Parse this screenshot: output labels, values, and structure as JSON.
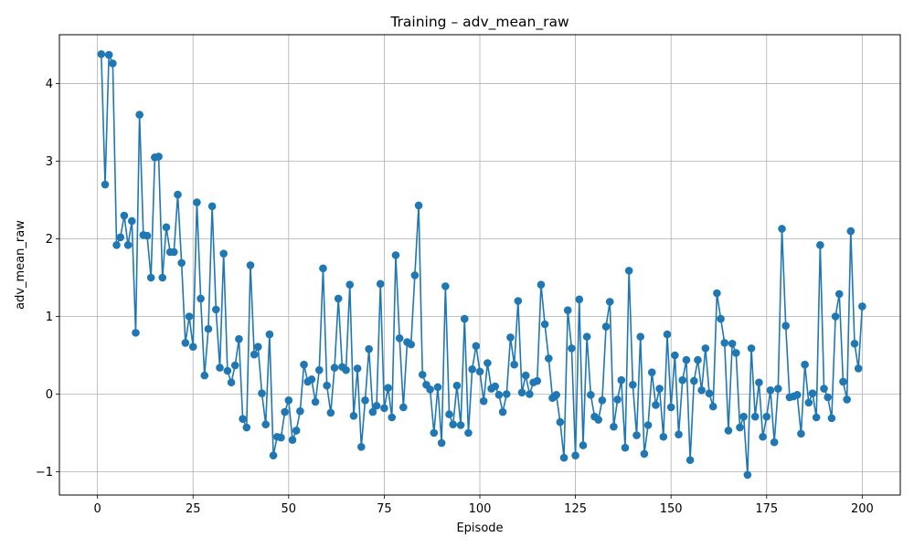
{
  "chart_data": {
    "type": "line",
    "title": "Training – adv_mean_raw",
    "xlabel": "Episode",
    "ylabel": "adv_mean_raw",
    "xlim": [
      -9.95,
      209.95
    ],
    "ylim": [
      -1.3,
      4.63
    ],
    "grid": true,
    "line_color": "#1f77b4",
    "marker": "circle",
    "xticks": [
      0,
      25,
      50,
      75,
      100,
      125,
      150,
      175,
      200
    ],
    "yticks": [
      -1,
      0,
      1,
      2,
      3,
      4
    ],
    "xtick_labels": [
      "0",
      "25",
      "50",
      "75",
      "100",
      "125",
      "150",
      "175",
      "200"
    ],
    "ytick_labels": [
      "−1",
      "0",
      "1",
      "2",
      "3",
      "4"
    ],
    "series": [
      {
        "x": [
          1,
          2,
          3,
          4,
          5,
          6,
          7,
          8,
          9,
          10,
          11,
          12,
          13,
          14,
          15,
          16,
          17,
          18,
          19,
          20,
          21,
          22,
          23,
          24,
          25,
          26,
          27,
          28,
          29,
          30,
          31,
          32,
          33,
          34,
          35,
          36,
          37,
          38,
          39,
          40,
          41,
          42,
          43,
          44,
          45,
          46,
          47,
          48,
          49,
          50,
          51,
          52,
          53,
          54,
          55,
          56,
          57,
          58,
          59,
          60,
          61,
          62,
          63,
          64,
          65,
          66,
          67,
          68,
          69,
          70,
          71,
          72,
          73,
          74,
          75,
          76,
          77,
          78,
          79,
          80,
          81,
          82,
          83,
          84,
          85,
          86,
          87,
          88,
          89,
          90,
          91,
          92,
          93,
          94,
          95,
          96,
          97,
          98,
          99,
          100,
          101,
          102,
          103,
          104,
          105,
          106,
          107,
          108,
          109,
          110,
          111,
          112,
          113,
          114,
          115,
          116,
          117,
          118,
          119,
          120,
          121,
          122,
          123,
          124,
          125,
          126,
          127,
          128,
          129,
          130,
          131,
          132,
          133,
          134,
          135,
          136,
          137,
          138,
          139,
          140,
          141,
          142,
          143,
          144,
          145,
          146,
          147,
          148,
          149,
          150,
          151,
          152,
          153,
          154,
          155,
          156,
          157,
          158,
          159,
          160,
          161,
          162,
          163,
          164,
          165,
          166,
          167,
          168,
          169,
          170,
          171,
          172,
          173,
          174,
          175,
          176,
          177,
          178,
          179,
          180,
          181,
          182,
          183,
          184,
          185,
          186,
          187,
          188,
          189,
          190,
          191,
          192,
          193,
          194,
          195,
          196,
          197,
          198,
          199,
          200
        ],
        "y": [
          4.38,
          2.7,
          4.37,
          4.26,
          1.92,
          2.02,
          2.3,
          1.92,
          2.23,
          0.79,
          3.6,
          2.05,
          2.04,
          1.5,
          3.05,
          3.06,
          1.5,
          2.15,
          1.83,
          1.83,
          2.57,
          1.69,
          0.66,
          1.0,
          0.61,
          2.47,
          1.23,
          0.24,
          0.84,
          2.42,
          1.09,
          0.34,
          1.81,
          0.3,
          0.15,
          0.37,
          0.71,
          -0.32,
          -0.43,
          1.66,
          0.51,
          0.61,
          0.01,
          -0.39,
          0.77,
          -0.79,
          -0.55,
          -0.56,
          -0.23,
          -0.08,
          -0.59,
          -0.47,
          -0.22,
          0.38,
          0.16,
          0.19,
          -0.1,
          0.31,
          1.62,
          0.11,
          -0.24,
          0.34,
          1.23,
          0.35,
          0.31,
          1.41,
          -0.28,
          0.33,
          -0.68,
          -0.08,
          0.58,
          -0.23,
          -0.15,
          1.42,
          -0.18,
          0.08,
          -0.3,
          1.79,
          0.72,
          -0.17,
          0.67,
          0.64,
          1.53,
          2.43,
          0.25,
          0.12,
          0.06,
          -0.5,
          0.09,
          -0.63,
          1.39,
          -0.26,
          -0.39,
          0.11,
          -0.4,
          0.97,
          -0.5,
          0.32,
          0.62,
          0.29,
          -0.09,
          0.4,
          0.07,
          0.1,
          -0.01,
          -0.23,
          0.0,
          0.73,
          0.38,
          1.2,
          0.02,
          0.24,
          0.0,
          0.15,
          0.17,
          1.41,
          0.9,
          0.46,
          -0.05,
          -0.01,
          -0.36,
          -0.82,
          1.08,
          0.59,
          -0.79,
          1.22,
          -0.66,
          0.74,
          -0.01,
          -0.29,
          -0.33,
          -0.08,
          0.87,
          1.19,
          -0.42,
          -0.07,
          0.18,
          -0.69,
          1.59,
          0.12,
          -0.53,
          0.74,
          -0.77,
          -0.4,
          0.28,
          -0.14,
          0.07,
          -0.55,
          0.77,
          -0.17,
          0.5,
          -0.52,
          0.18,
          0.44,
          -0.85,
          0.17,
          0.44,
          0.05,
          0.59,
          0.01,
          -0.16,
          1.3,
          0.97,
          0.66,
          -0.47,
          0.65,
          0.53,
          -0.43,
          -0.29,
          -1.04,
          0.59,
          -0.29,
          0.15,
          -0.55,
          -0.29,
          0.05,
          -0.62,
          0.07,
          2.13,
          0.88,
          -0.04,
          -0.03,
          -0.01,
          -0.51,
          0.38,
          -0.11,
          0.01,
          -0.3,
          1.92,
          0.07,
          -0.04,
          -0.31,
          1.0,
          1.29,
          0.16,
          -0.07,
          2.1,
          0.65,
          0.33,
          1.13
        ]
      }
    ]
  }
}
